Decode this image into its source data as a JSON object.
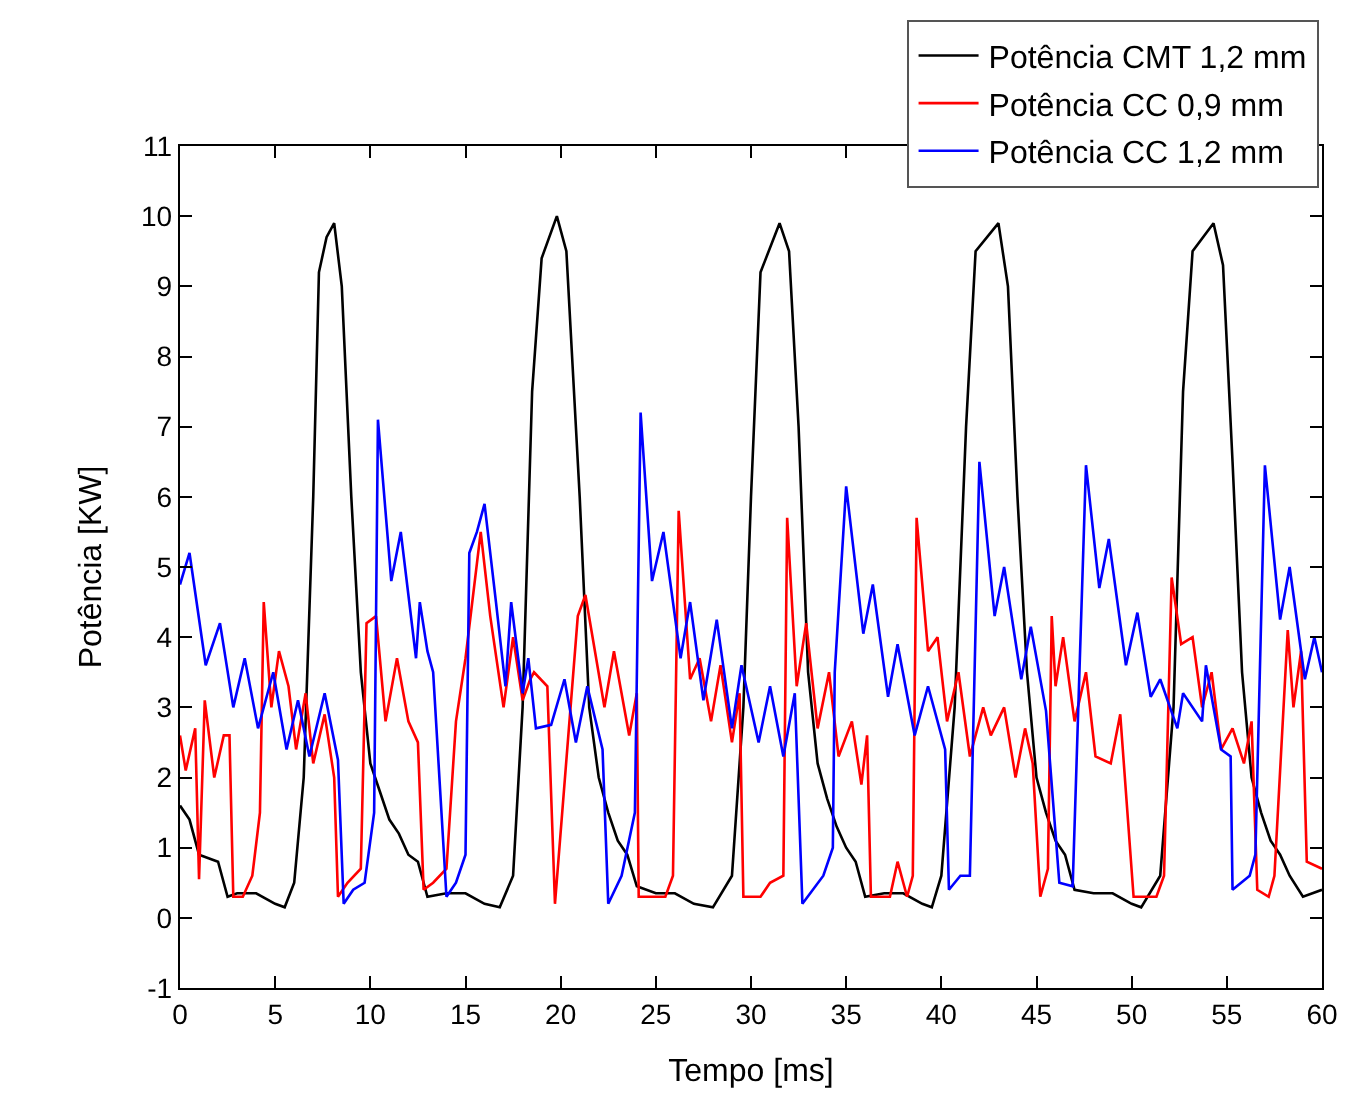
{
  "chart_data": {
    "type": "line",
    "xlabel": "Tempo [ms]",
    "ylabel": "Potência [KW]",
    "xlim": [
      0,
      60
    ],
    "ylim": [
      -1,
      11
    ],
    "xticks": [
      0,
      5,
      10,
      15,
      20,
      25,
      30,
      35,
      40,
      45,
      50,
      55,
      60
    ],
    "yticks": [
      -1,
      0,
      1,
      2,
      3,
      4,
      5,
      6,
      7,
      8,
      9,
      10,
      11
    ],
    "legend": "top right",
    "marker": "none",
    "line_style": "solid",
    "series": [
      {
        "name": "Potência CMT 1,2 mm",
        "color": "#000000",
        "x": [
          0,
          0.5,
          1,
          1.5,
          2,
          2.5,
          3,
          4,
          5,
          5.5,
          6,
          6.5,
          7,
          7.3,
          7.7,
          8.1,
          8.5,
          9,
          9.5,
          10,
          10.5,
          11,
          11.5,
          12,
          12.5,
          13,
          14,
          15,
          16,
          16.8,
          17.5,
          18,
          18.5,
          19,
          19.8,
          20.3,
          21,
          21.5,
          22,
          22.5,
          23,
          23.5,
          24,
          25,
          26,
          27,
          28,
          29,
          29.6,
          30,
          30.5,
          31.5,
          32,
          32.5,
          33,
          33.5,
          34,
          34.5,
          35,
          35.5,
          36,
          37,
          38,
          39,
          39.5,
          40,
          40.7,
          41.3,
          41.8,
          43,
          43.5,
          44,
          44.5,
          45,
          45.5,
          46,
          46.5,
          47,
          48,
          49,
          50,
          50.5,
          51.5,
          52.2,
          52.7,
          53.2,
          54.3,
          54.8,
          55.3,
          55.8,
          56.3,
          56.8,
          57.3,
          57.8,
          58.3,
          59,
          59.5,
          60
        ],
        "values": [
          1.6,
          1.4,
          0.9,
          0.85,
          0.8,
          0.3,
          0.35,
          0.35,
          0.2,
          0.15,
          0.5,
          2,
          6,
          9.2,
          9.7,
          9.9,
          9,
          6,
          3.5,
          2.2,
          1.8,
          1.4,
          1.2,
          0.9,
          0.8,
          0.3,
          0.35,
          0.35,
          0.2,
          0.15,
          0.6,
          3,
          7.5,
          9.4,
          10,
          9.5,
          6,
          3,
          2,
          1.5,
          1.1,
          0.9,
          0.45,
          0.35,
          0.35,
          0.2,
          0.15,
          0.6,
          3,
          6,
          9.2,
          9.9,
          9.5,
          7,
          3.5,
          2.2,
          1.7,
          1.3,
          1,
          0.8,
          0.3,
          0.35,
          0.35,
          0.2,
          0.15,
          0.6,
          3,
          7,
          9.5,
          9.9,
          9,
          6,
          3.5,
          2,
          1.5,
          1.1,
          0.9,
          0.4,
          0.35,
          0.35,
          0.2,
          0.15,
          0.6,
          3,
          7.5,
          9.5,
          9.9,
          9.3,
          6.5,
          3.5,
          2,
          1.5,
          1.1,
          0.9,
          0.6,
          0.3,
          0.35,
          0.4
        ]
      },
      {
        "name": "Potência CC 0,9 mm",
        "color": "#ff0000",
        "x": [
          0,
          0.3,
          0.8,
          1,
          1.3,
          1.8,
          2.3,
          2.6,
          2.8,
          3.3,
          3.8,
          4.2,
          4.4,
          4.8,
          5.2,
          5.7,
          6.1,
          6.6,
          7,
          7.6,
          8.1,
          8.3,
          8.8,
          9.5,
          9.8,
          10.3,
          10.8,
          11.4,
          12,
          12.5,
          12.8,
          13.3,
          14,
          14.5,
          15,
          15.8,
          16.3,
          17,
          17.5,
          18,
          18.4,
          18.6,
          19.3,
          19.7,
          20.9,
          21.3,
          22.3,
          22.8,
          23.6,
          24,
          24.1,
          25.5,
          25.9,
          26.2,
          26.8,
          27.3,
          27.9,
          28.4,
          29,
          29.4,
          29.6,
          30.5,
          31,
          31.7,
          31.9,
          32.4,
          32.9,
          33.5,
          34.1,
          34.6,
          35.3,
          35.8,
          36.1,
          36.3,
          37.3,
          37.7,
          38.2,
          38.5,
          38.7,
          39.3,
          39.8,
          40.3,
          40.9,
          41.5,
          42.2,
          42.6,
          43.3,
          43.9,
          44.4,
          44.8,
          45.2,
          45.6,
          45.8,
          46,
          46.4,
          47,
          47.6,
          48.1,
          48.9,
          49.4,
          50.1,
          51.3,
          51.7,
          52.1,
          52.6,
          53.2,
          53.7,
          54.2,
          54.7,
          55.3,
          55.9,
          56.3,
          56.6,
          57.2,
          57.5,
          58.2,
          58.5,
          58.9,
          59.2,
          60
        ],
        "values": [
          2.6,
          2.1,
          2.7,
          0.55,
          3.1,
          2,
          2.6,
          2.6,
          0.3,
          0.3,
          0.6,
          1.5,
          4.5,
          3,
          3.8,
          3.3,
          2.4,
          3.2,
          2.2,
          2.9,
          2,
          0.3,
          0.5,
          0.7,
          4.2,
          4.3,
          2.8,
          3.7,
          2.8,
          2.5,
          0.4,
          0.5,
          0.7,
          2.8,
          3.7,
          5.5,
          4.3,
          3,
          4,
          3.1,
          3.4,
          3.5,
          3.3,
          0.2,
          4.3,
          4.6,
          3,
          3.8,
          2.6,
          3.2,
          0.3,
          0.3,
          0.6,
          5.8,
          3.4,
          3.7,
          2.8,
          3.6,
          2.5,
          3.2,
          0.3,
          0.3,
          0.5,
          0.6,
          5.7,
          3.3,
          4.2,
          2.7,
          3.5,
          2.3,
          2.8,
          1.9,
          2.6,
          0.3,
          0.3,
          0.8,
          0.3,
          0.6,
          5.7,
          3.8,
          4,
          2.8,
          3.5,
          2.3,
          3,
          2.6,
          3,
          2,
          2.7,
          2.2,
          0.3,
          0.7,
          4.3,
          3.3,
          4,
          2.8,
          3.5,
          2.3,
          2.2,
          2.9,
          0.3,
          0.3,
          0.6,
          4.85,
          3.9,
          4,
          3,
          3.5,
          2.4,
          2.7,
          2.2,
          2.8,
          0.4,
          0.3,
          0.6,
          4.1,
          3,
          3.8,
          0.8,
          0.7
        ]
      },
      {
        "name": "Potência CC 1,2 mm",
        "color": "#0000ff",
        "x": [
          0,
          0.5,
          1.35,
          2.1,
          2.8,
          3.4,
          4.1,
          4.9,
          5.6,
          6.2,
          6.8,
          7.6,
          8.3,
          8.6,
          9.1,
          9.7,
          10.2,
          10.4,
          11.1,
          11.6,
          12.4,
          12.6,
          13,
          13.3,
          14,
          14.5,
          15,
          15.2,
          15.6,
          16,
          16.6,
          17.1,
          17.4,
          18,
          18.3,
          18.7,
          19.5,
          20.2,
          20.8,
          21.4,
          22.2,
          22.5,
          23.2,
          23.9,
          24.2,
          24.8,
          25.4,
          26.3,
          26.8,
          27.5,
          28.2,
          29,
          29.5,
          30.4,
          31,
          31.7,
          32.3,
          32.7,
          33.8,
          34.3,
          34.4,
          35,
          35.9,
          36.4,
          37.2,
          37.7,
          38.6,
          39.3,
          40.2,
          40.4,
          41,
          41.5,
          42,
          42.8,
          43.3,
          44.2,
          44.7,
          45.5,
          46.2,
          46.9,
          47.6,
          48.3,
          48.8,
          49.7,
          50.3,
          51,
          51.5,
          52.4,
          52.7,
          53.7,
          53.9,
          54.7,
          55.2,
          55.3,
          56.2,
          56.5,
          57,
          57.8,
          58.3,
          59.1,
          59.6,
          60
        ],
        "values": [
          4.75,
          5.2,
          3.6,
          4.2,
          3,
          3.7,
          2.7,
          3.5,
          2.4,
          3.1,
          2.3,
          3.2,
          2.25,
          0.2,
          0.4,
          0.5,
          1.5,
          7.1,
          4.8,
          5.5,
          3.7,
          4.5,
          3.8,
          3.5,
          0.3,
          0.5,
          0.9,
          5.2,
          5.5,
          5.9,
          4.5,
          3.3,
          4.5,
          3.2,
          3.7,
          2.7,
          2.75,
          3.4,
          2.5,
          3.3,
          2.4,
          0.2,
          0.6,
          1.5,
          7.2,
          4.8,
          5.5,
          3.7,
          4.5,
          3.1,
          4.25,
          2.7,
          3.6,
          2.5,
          3.3,
          2.3,
          3.2,
          0.2,
          0.6,
          1,
          3.5,
          6.15,
          4.05,
          4.75,
          3.15,
          3.9,
          2.6,
          3.3,
          2.4,
          0.4,
          0.6,
          0.6,
          6.5,
          4.3,
          5,
          3.4,
          4.15,
          2.95,
          0.5,
          0.45,
          6.45,
          4.7,
          5.4,
          3.6,
          4.35,
          3.15,
          3.4,
          2.7,
          3.2,
          2.8,
          3.6,
          2.4,
          2.3,
          0.4,
          0.6,
          0.9,
          6.45,
          4.25,
          5,
          3.4,
          4,
          3.5
        ]
      }
    ]
  }
}
